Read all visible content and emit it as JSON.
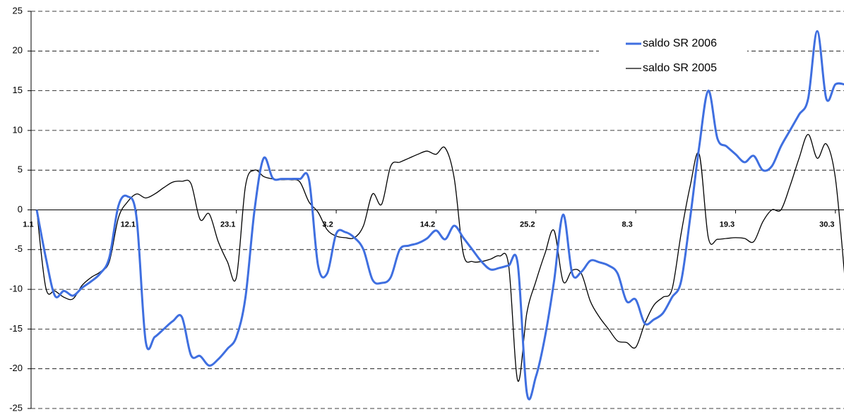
{
  "chart_data": {
    "type": "line",
    "categories": [
      "1.1",
      null,
      null,
      null,
      null,
      null,
      null,
      null,
      null,
      null,
      null,
      "12.1",
      null,
      null,
      null,
      null,
      null,
      null,
      null,
      null,
      null,
      null,
      "23.1",
      null,
      null,
      null,
      null,
      null,
      null,
      null,
      null,
      null,
      null,
      "3.2",
      null,
      null,
      null,
      null,
      null,
      null,
      null,
      null,
      null,
      null,
      "14.2",
      null,
      null,
      null,
      null,
      null,
      null,
      null,
      null,
      null,
      null,
      "25.2",
      null,
      null,
      null,
      null,
      null,
      null,
      null,
      null,
      null,
      null,
      "8.3",
      null,
      null,
      null,
      null,
      null,
      null,
      null,
      null,
      null,
      null,
      "19.3",
      null,
      null,
      null,
      null,
      null,
      null,
      null,
      null,
      null,
      null,
      "30.3",
      null
    ],
    "series": [
      {
        "name": "saldo SR 2006",
        "color": "#3f6fe0",
        "values": [
          0,
          -6,
          -10.8,
          -10.2,
          -10.8,
          -9.8,
          -9,
          -8,
          -6,
          0.5,
          1.7,
          -1,
          -16.5,
          -16,
          -15,
          -14,
          -13.5,
          -18.3,
          -18.4,
          -19.6,
          -18.8,
          -17.5,
          -16,
          -11,
          0,
          6.5,
          4,
          3.9,
          3.9,
          3.9,
          3.8,
          -7,
          -8,
          -3,
          -2.8,
          -3.5,
          -5,
          -8.8,
          -9.2,
          -8.5,
          -5,
          -4.5,
          -4.2,
          -3.6,
          -2.6,
          -3.7,
          -2,
          -3.5,
          -5,
          -6.5,
          -7.5,
          -7.3,
          -7,
          -6.8,
          -23,
          -21,
          -16,
          -9,
          -0.6,
          -8,
          -7.8,
          -6.4,
          -6.6,
          -7,
          -8,
          -11.5,
          -11.3,
          -14.3,
          -13.8,
          -13,
          -11,
          -9,
          -1,
          8,
          15,
          9,
          8,
          7,
          6,
          6.8,
          5,
          5.5,
          8,
          10,
          12,
          14,
          22.5,
          14,
          15.8,
          15.8
        ]
      },
      {
        "name": "saldo SR 2005",
        "color": "#000000",
        "values": [
          0,
          -9.8,
          -10.2,
          -11,
          -11.2,
          -9.5,
          -8.5,
          -7.8,
          -6.5,
          -1,
          1,
          2,
          1.5,
          2,
          2.8,
          3.5,
          3.6,
          3.3,
          -1.2,
          -0.5,
          -4,
          -6.5,
          -8.5,
          3,
          5,
          4.2,
          3.9,
          3.8,
          3.8,
          3.5,
          1,
          -0.3,
          -2.5,
          -3.3,
          -3.5,
          -3.5,
          -2,
          2,
          0.7,
          5.5,
          6,
          6.5,
          7,
          7.4,
          7,
          7.8,
          4,
          -5.5,
          -6.5,
          -6.5,
          -6.2,
          -5.8,
          -7,
          -21.5,
          -13,
          -9,
          -5.5,
          -2.6,
          -9,
          -7.6,
          -8,
          -11.5,
          -13.5,
          -15,
          -16.5,
          -16.7,
          -17.3,
          -14.3,
          -12,
          -11,
          -10,
          -3,
          3,
          7,
          -3.5,
          -3.7,
          -3.6,
          -3.5,
          -3.6,
          -4,
          -1.5,
          0,
          0,
          3,
          6.5,
          9.5,
          6.5,
          8.3,
          4,
          -8
        ]
      }
    ],
    "ylim": [
      -25,
      25
    ],
    "yticks": [
      -25,
      -20,
      -15,
      -10,
      -5,
      0,
      5,
      10,
      15,
      20,
      25
    ],
    "grid": true,
    "legend": "top-right"
  }
}
